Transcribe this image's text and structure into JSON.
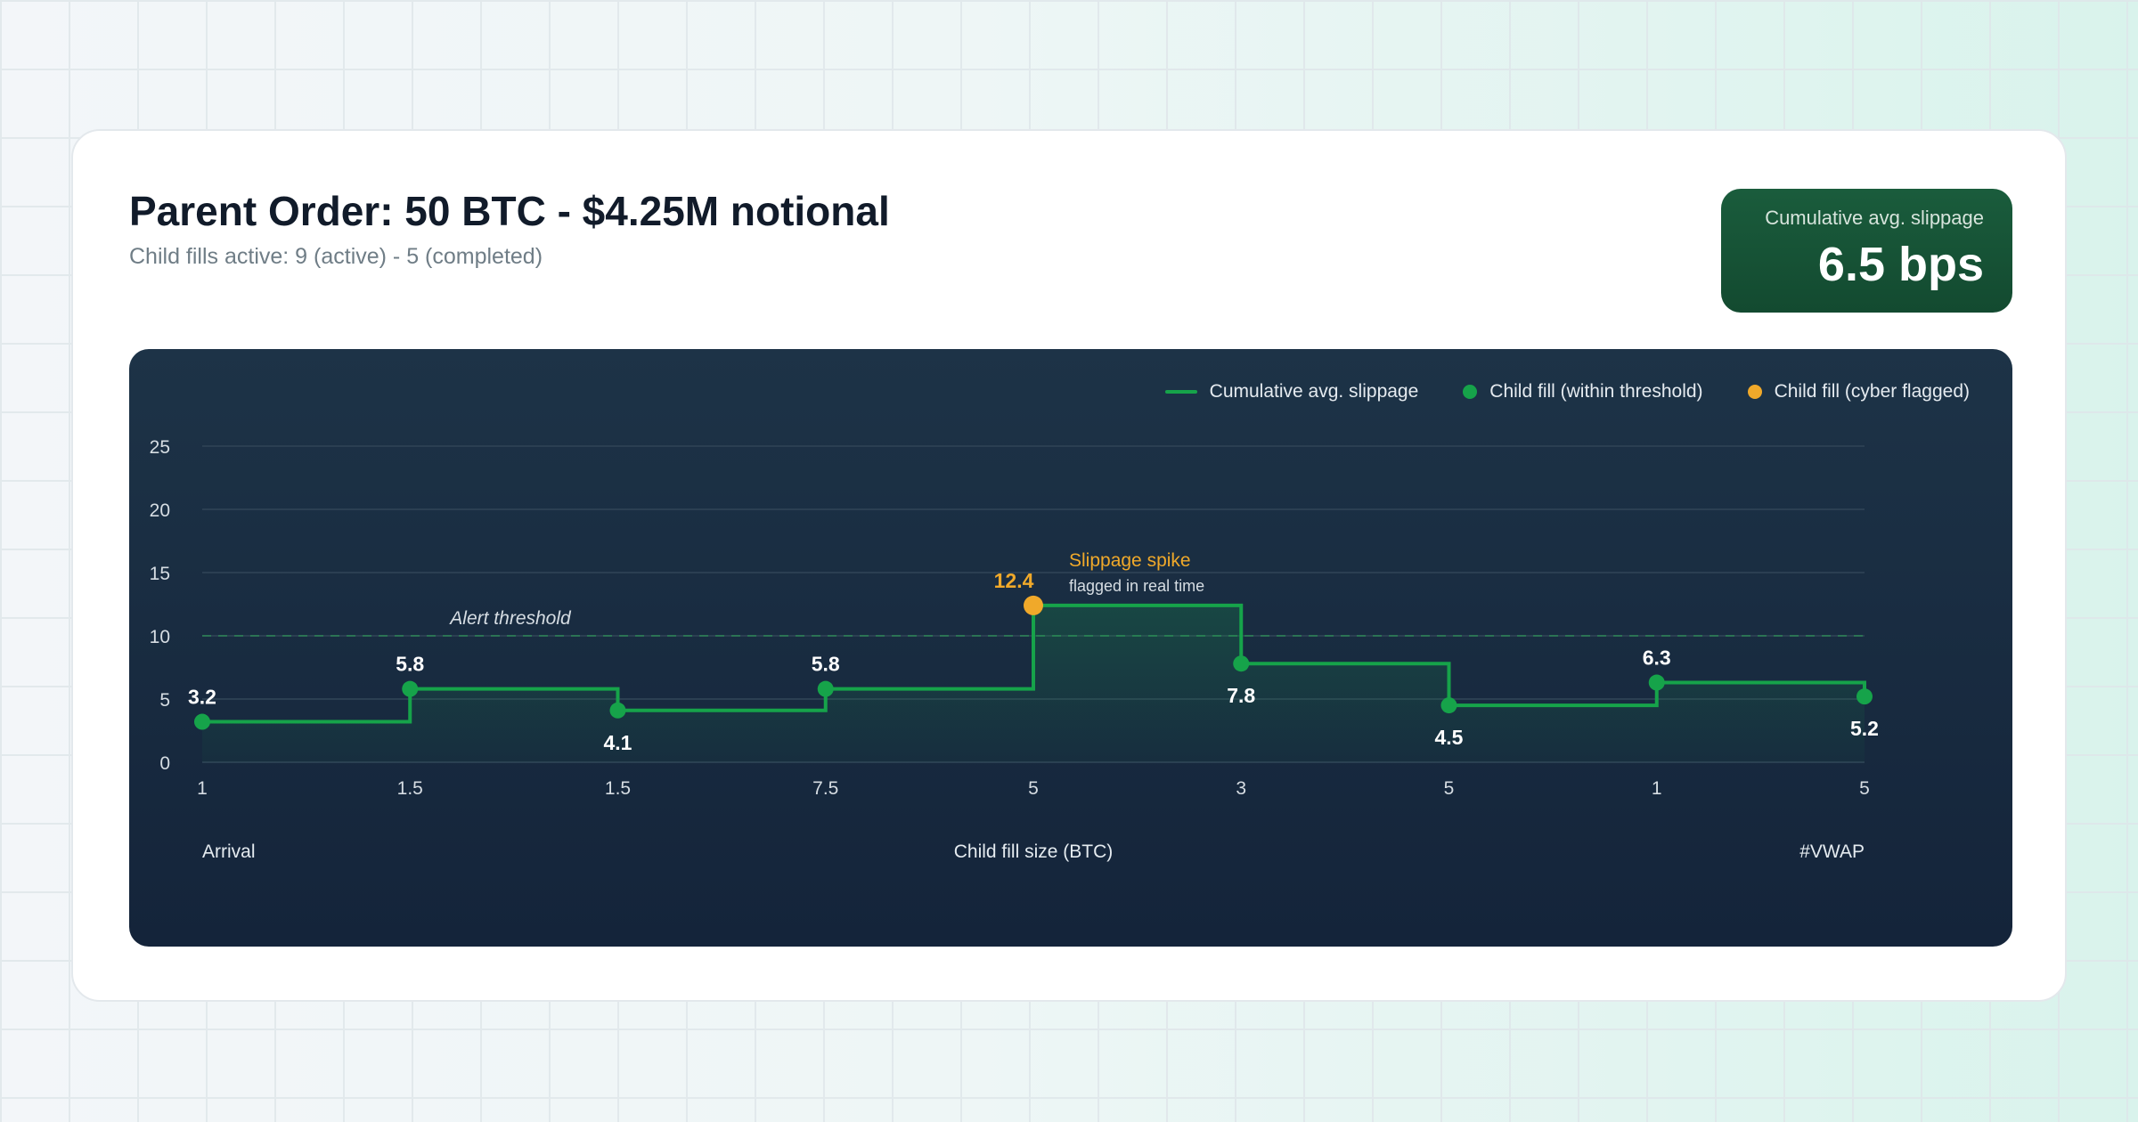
{
  "header": {
    "title": "Parent Order: 50 BTC - $4.25M notional",
    "subtitle": "Child fills active: 9 (active) - 5 (completed)"
  },
  "badge": {
    "label": "Cumulative avg. slippage",
    "value": "6.5 bps"
  },
  "colors": {
    "line": "#16a34a",
    "normal": "#16a34a",
    "flagged": "#f0a92a",
    "threshold": "#2c8a55"
  },
  "chart_data": {
    "type": "line",
    "step": "after",
    "legend": [
      "Cumulative avg. slippage",
      "Child fill (within threshold)",
      "Child fill (cyber flagged)"
    ],
    "legend_position": "top-right",
    "xlabel": "Child fill size (BTC)",
    "x_start_label": "Arrival",
    "x_end_label": "#VWAP",
    "categories": [
      "1",
      "1.5",
      "1.5",
      "7.5",
      "5",
      "3",
      "5",
      "1",
      "5"
    ],
    "values": [
      3.2,
      5.8,
      4.1,
      5.8,
      12.4,
      7.8,
      4.5,
      6.3,
      5.2
    ],
    "labels": [
      "3.2",
      "5.8",
      "4.1",
      "5.8",
      "12.4",
      "7.8",
      "4.5",
      "6.3",
      "5.2"
    ],
    "label_pos": [
      "above",
      "above",
      "below",
      "above",
      "above",
      "below",
      "below",
      "above",
      "below"
    ],
    "flagged": [
      false,
      false,
      false,
      false,
      true,
      false,
      false,
      false,
      false
    ],
    "yticks": [
      "0",
      "5",
      "10",
      "15",
      "20",
      "25"
    ],
    "ylim": [
      0,
      25
    ],
    "grid": true,
    "threshold": {
      "value": 10,
      "label": "Alert threshold"
    },
    "annotation": {
      "title": "Slippage spike",
      "subtitle": "flagged in real time"
    }
  }
}
